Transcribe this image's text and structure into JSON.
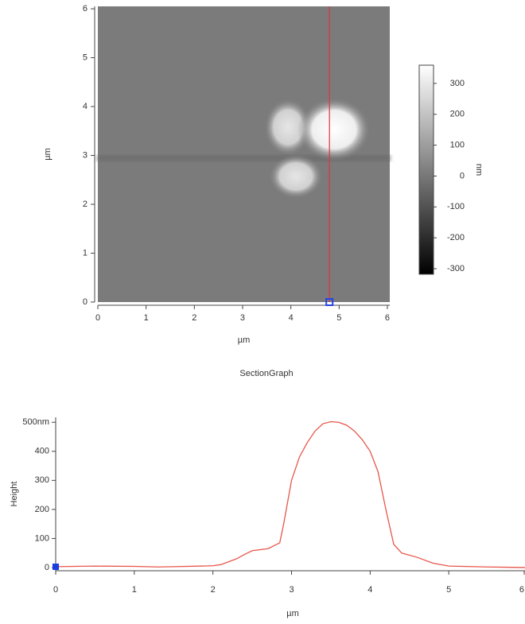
{
  "chart_data": [
    {
      "type": "image",
      "xlabel": "µm",
      "ylabel": "µm",
      "xlim": [
        0,
        6.05
      ],
      "ylim": [
        0,
        6.05
      ],
      "xticks": [
        0,
        1,
        2,
        3,
        4,
        5,
        6
      ],
      "yticks": [
        0,
        1,
        2,
        3,
        4,
        5,
        6
      ],
      "section_x": 4.8,
      "section_color": "#d9363e",
      "colorbar": {
        "label": "nm",
        "lim": [
          -318,
          359
        ],
        "ticks": [
          300,
          200,
          100,
          0,
          -100,
          -200,
          -300
        ]
      }
    },
    {
      "type": "line",
      "title": "SectionGraph",
      "xlabel": "µm",
      "ylabel": "Height",
      "xlim": [
        0,
        6
      ],
      "ylim": [
        -11,
        517
      ],
      "xticks": [
        0,
        1,
        2,
        3,
        4,
        5,
        6
      ],
      "yticks": [
        0,
        100,
        200,
        300,
        400,
        {
          "value": 500,
          "label": "500nm"
        }
      ],
      "marker_x": 0,
      "series": [
        {
          "color": "#e8564a",
          "x": [
            0,
            0.5,
            1,
            1.3,
            1.5,
            2,
            2.1,
            2.3,
            2.4,
            2.5,
            2.7,
            2.85,
            2.9,
            3.0,
            3.1,
            3.2,
            3.3,
            3.4,
            3.5,
            3.6,
            3.7,
            3.8,
            3.9,
            4.0,
            4.1,
            4.2,
            4.3,
            4.4,
            4.6,
            4.8,
            5.0,
            5.5,
            6.0
          ],
          "values": [
            3,
            5,
            4,
            2,
            3,
            6,
            10,
            30,
            45,
            58,
            65,
            85,
            150,
            300,
            380,
            430,
            470,
            495,
            502,
            500,
            490,
            470,
            440,
            400,
            330,
            200,
            80,
            50,
            35,
            15,
            5,
            2,
            0
          ]
        }
      ]
    }
  ]
}
